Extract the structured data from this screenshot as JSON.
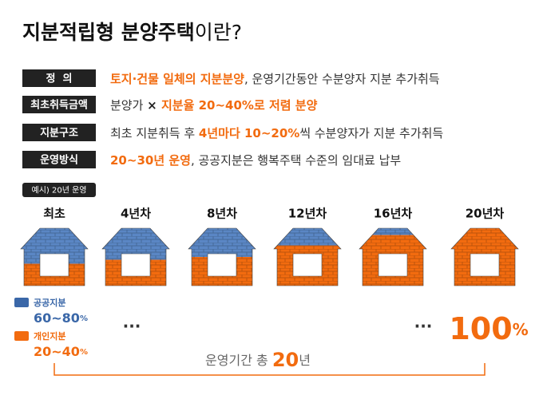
{
  "title": {
    "bold": "지분적립형 분양주택",
    "rest": "이란?"
  },
  "rows": [
    {
      "label": "정  의",
      "description": [
        {
          "text": "토지·건물 일체의 지분분양",
          "style": "highlight"
        },
        {
          "text": ", 운영기간동안 수분양자 지분 추가취득",
          "style": "plain"
        }
      ]
    },
    {
      "label": "최초취득금액",
      "description": [
        {
          "text": "분양가 ",
          "style": "plain"
        },
        {
          "text": "× ",
          "style": "strong"
        },
        {
          "text": "지분율 20~40%로 저렴 분양",
          "style": "highlight"
        }
      ]
    },
    {
      "label": "지분구조",
      "description": [
        {
          "text": "최초 지분취득 후 ",
          "style": "plain"
        },
        {
          "text": "4년마다 10~20%",
          "style": "highlight"
        },
        {
          "text": "씩 수분양자가 지분 추가취득",
          "style": "plain"
        }
      ]
    },
    {
      "label": "운영방식",
      "description": [
        {
          "text": "20~30년 운영",
          "style": "highlight"
        },
        {
          "text": ", 공공지분은 행복주택 수준의 임대료 납부",
          "style": "plain"
        }
      ]
    }
  ],
  "example_badge": "예시) 20년 운영",
  "stages": [
    "최초",
    "4년차",
    "8년차",
    "12년차",
    "16년차",
    "20년차"
  ],
  "legend": [
    {
      "name": "공공지분",
      "range": "60~80",
      "unit": "%",
      "color": "#3a67a8"
    },
    {
      "name": "개인지분",
      "range": "20~40",
      "unit": "%",
      "color": "#f26b0f"
    }
  ],
  "ellipsis": [
    "···",
    "···"
  ],
  "final_share": {
    "value": "100",
    "unit": "%"
  },
  "period": {
    "prefix": "운영기간 총 ",
    "number": "20",
    "suffix": "년"
  }
}
